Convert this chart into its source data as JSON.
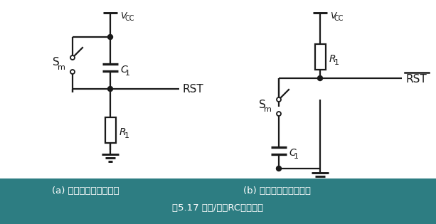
{
  "bg_white": "#ffffff",
  "bg_caption": "#2d7d82",
  "line_color": "#1a1a1a",
  "caption_text_color": "#ffffff",
  "caption_line1_a": "(a) 手动高电平复位电路",
  "caption_line1_b": "(b) 手动低电平复位电路",
  "caption_line2": "图5.17 手动/上电RC复位电路",
  "lw": 1.6,
  "figw": 6.13,
  "figh": 3.15,
  "dpi": 100
}
